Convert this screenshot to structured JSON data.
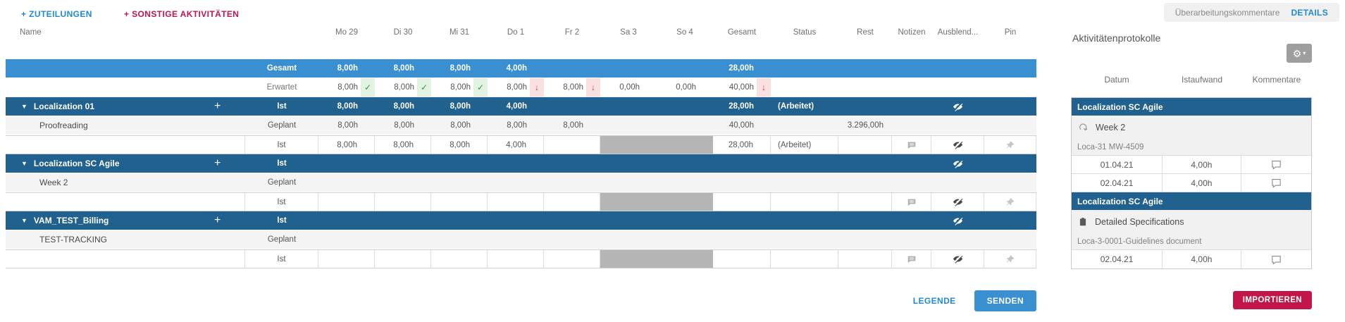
{
  "toolbar": {
    "add_assignments": "+ ZUTEILUNGEN",
    "add_other": "+ SONSTIGE AKTIVITÄTEN",
    "revision_comments": "Überarbeitungskommentare",
    "details": "DETAILS"
  },
  "grid": {
    "name_header": "Name",
    "day_headers": [
      "Mo 29",
      "Di 30",
      "Mi 31",
      "Do 1",
      "Fr 2",
      "Sa 3",
      "So 4"
    ],
    "col_headers": [
      "Gesamt",
      "Status",
      "Rest",
      "Notizen",
      "Ausblend...",
      "Pin"
    ],
    "rows": [
      {
        "type": "summary",
        "name": "",
        "label": "Gesamt",
        "days": [
          "8,00h",
          "8,00h",
          "8,00h",
          "4,00h",
          "",
          "",
          ""
        ],
        "gesamt": "28,00h",
        "status": "",
        "rest": ""
      },
      {
        "type": "expected",
        "name": "",
        "label": "Erwartet",
        "days": [
          {
            "v": "8,00h",
            "m": "check"
          },
          {
            "v": "8,00h",
            "m": "check"
          },
          {
            "v": "8,00h",
            "m": "check"
          },
          {
            "v": "8,00h",
            "m": "down"
          },
          {
            "v": "8,00h",
            "m": "down"
          },
          {
            "v": "0,00h",
            "m": ""
          },
          {
            "v": "0,00h",
            "m": ""
          }
        ],
        "gesamt": {
          "v": "40,00h",
          "m": "down"
        },
        "status": "",
        "rest": ""
      },
      {
        "type": "group",
        "name": "Localization 01",
        "label": "Ist",
        "days": [
          "8,00h",
          "8,00h",
          "8,00h",
          "4,00h",
          "",
          "",
          ""
        ],
        "gesamt": "28,00h",
        "status": "(Arbeitet)",
        "rest": ""
      },
      {
        "type": "geplant",
        "name": "Proofreading",
        "label": "Geplant",
        "days": [
          "8,00h",
          "8,00h",
          "8,00h",
          "8,00h",
          "8,00h",
          "",
          ""
        ],
        "gesamt": "40,00h",
        "status": "",
        "rest": "3.296,00h"
      },
      {
        "type": "ist",
        "name": "",
        "label": "Ist",
        "days": [
          "8,00h",
          "8,00h",
          "8,00h",
          "4,00h",
          "",
          "",
          ""
        ],
        "gesamt": "28,00h",
        "status": "(Arbeitet)",
        "rest": ""
      },
      {
        "type": "group",
        "name": "Localization SC Agile",
        "label": "Ist",
        "days": [
          "",
          "",
          "",
          "",
          "",
          "",
          ""
        ],
        "gesamt": "",
        "status": "",
        "rest": ""
      },
      {
        "type": "geplant",
        "name": "Week 2",
        "label": "Geplant",
        "days": [
          "",
          "",
          "",
          "",
          "",
          "",
          ""
        ],
        "gesamt": "",
        "status": "",
        "rest": ""
      },
      {
        "type": "ist",
        "name": "",
        "label": "Ist",
        "days": [
          "",
          "",
          "",
          "",
          "",
          "",
          ""
        ],
        "gesamt": "",
        "status": "",
        "rest": ""
      },
      {
        "type": "group",
        "name": "VAM_TEST_Billing",
        "label": "Ist",
        "days": [
          "",
          "",
          "",
          "",
          "",
          "",
          ""
        ],
        "gesamt": "",
        "status": "",
        "rest": ""
      },
      {
        "type": "geplant",
        "name": "TEST-TRACKING",
        "label": "Geplant",
        "days": [
          "",
          "",
          "",
          "",
          "",
          "",
          ""
        ],
        "gesamt": "",
        "status": "",
        "rest": ""
      },
      {
        "type": "ist",
        "name": "",
        "label": "Ist",
        "days": [
          "",
          "",
          "",
          "",
          "",
          "",
          ""
        ],
        "gesamt": "",
        "status": "",
        "rest": ""
      }
    ]
  },
  "footer": {
    "legende": "LEGENDE",
    "senden": "SENDEN"
  },
  "panel": {
    "title": "Aktivitätenprotokolle",
    "columns": [
      "Datum",
      "Istaufwand",
      "Kommentare"
    ],
    "sections": [
      {
        "header": "Localization SC Agile",
        "icon": "sprint",
        "item": "Week 2",
        "sub": "Loca-31 MW-4509",
        "entries": [
          {
            "date": "01.04.21",
            "effort": "4,00h"
          },
          {
            "date": "02.04.21",
            "effort": "4,00h"
          }
        ]
      },
      {
        "header": "Localization SC Agile",
        "icon": "task",
        "item": "Detailed Specifications",
        "sub": "Loca-3-0001-Guidelines document",
        "entries": [
          {
            "date": "02.04.21",
            "effort": "4,00h"
          }
        ]
      }
    ],
    "import_label": "IMPORTIEREN"
  },
  "colors": {
    "summary_blue": "#3a8fd0",
    "group_blue": "#21618f",
    "link_blue": "#2089d5",
    "crimson": "#c2164b",
    "green": "#2f9e44",
    "red": "#e03131",
    "blocked_gray": "#b5b5b5"
  }
}
